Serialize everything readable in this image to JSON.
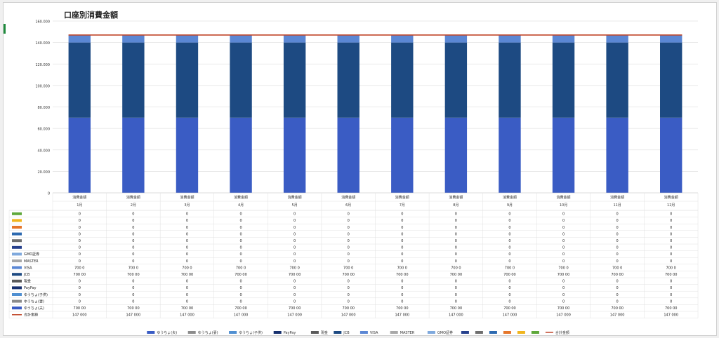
{
  "colors": {
    "bar_bottom": "#3a5cc4",
    "bar_mid": "#1d4a82",
    "bar_top": "#5b87d4",
    "total_line": "#c0462a"
  },
  "chart_data": {
    "type": "bar",
    "stacked": true,
    "title": "口座別消費金額",
    "categories": [
      "1月",
      "2月",
      "3月",
      "4月",
      "5月",
      "6月",
      "7月",
      "8月",
      "9月",
      "10月",
      "11月",
      "12月"
    ],
    "category_group": "消費金額",
    "ylim": [
      0,
      160000
    ],
    "y_ticks": [
      "0",
      "20.000",
      "40.000",
      "60.000",
      "80.000",
      "100.000",
      "120.000",
      "140.000",
      "160.000"
    ],
    "grid": true,
    "legend_position": "bottom",
    "series": [
      {
        "name": "ゆうちょ(夫)",
        "color": "#3a5cc4",
        "values": [
          70000,
          70000,
          70000,
          70000,
          70000,
          70000,
          70000,
          70000,
          70000,
          70000,
          70000,
          70000
        ],
        "labels": [
          "700 00",
          "700 00",
          "700 00",
          "700 00",
          "700 00",
          "700 00",
          "700 00",
          "700 00",
          "700 00",
          "700 00",
          "700 00",
          "700 00"
        ]
      },
      {
        "name": "ゆうちょ(妻)",
        "color": "#8c8c8c",
        "values": [
          0,
          0,
          0,
          0,
          0,
          0,
          0,
          0,
          0,
          0,
          0,
          0
        ]
      },
      {
        "name": "ゆうちょ(子供)",
        "color": "#4f8fd1",
        "values": [
          0,
          0,
          0,
          0,
          0,
          0,
          0,
          0,
          0,
          0,
          0,
          0
        ]
      },
      {
        "name": "PayPay",
        "color": "#17306e",
        "values": [
          0,
          0,
          0,
          0,
          0,
          0,
          0,
          0,
          0,
          0,
          0,
          0
        ]
      },
      {
        "name": "現金",
        "color": "#5a5a5a",
        "values": [
          0,
          0,
          0,
          0,
          0,
          0,
          0,
          0,
          0,
          0,
          0,
          0
        ]
      },
      {
        "name": "JCB",
        "color": "#1d4a82",
        "values": [
          70000,
          70000,
          70000,
          70000,
          70000,
          70000,
          70000,
          70000,
          70000,
          70000,
          70000,
          70000
        ],
        "labels": [
          "700 00",
          "700 00",
          "700 00",
          "700 00",
          "700 00",
          "700 00",
          "700 00",
          "700 00",
          "700 00",
          "700 00",
          "700 00",
          "700 00"
        ]
      },
      {
        "name": "VISA",
        "color": "#5b87d4",
        "values": [
          7000,
          7000,
          7000,
          7000,
          7000,
          7000,
          7000,
          7000,
          7000,
          7000,
          7000,
          7000
        ],
        "labels": [
          "700 0",
          "700 0",
          "700 0",
          "700 0",
          "700 0",
          "700 0",
          "700 0",
          "700 0",
          "700 0",
          "700 0",
          "700 0",
          "700 0"
        ]
      },
      {
        "name": "MASTER",
        "color": "#a8a8a8",
        "values": [
          0,
          0,
          0,
          0,
          0,
          0,
          0,
          0,
          0,
          0,
          0,
          0
        ]
      },
      {
        "name": "GMO証券",
        "color": "#7fa9dd",
        "values": [
          0,
          0,
          0,
          0,
          0,
          0,
          0,
          0,
          0,
          0,
          0,
          0
        ]
      },
      {
        "name": "",
        "color": "#26408c",
        "values": [
          0,
          0,
          0,
          0,
          0,
          0,
          0,
          0,
          0,
          0,
          0,
          0
        ]
      },
      {
        "name": "",
        "color": "#6e6e6e",
        "values": [
          0,
          0,
          0,
          0,
          0,
          0,
          0,
          0,
          0,
          0,
          0,
          0
        ]
      },
      {
        "name": "",
        "color": "#2c69b0",
        "values": [
          0,
          0,
          0,
          0,
          0,
          0,
          0,
          0,
          0,
          0,
          0,
          0
        ]
      },
      {
        "name": "",
        "color": "#e5762a",
        "values": [
          0,
          0,
          0,
          0,
          0,
          0,
          0,
          0,
          0,
          0,
          0,
          0
        ]
      },
      {
        "name": "",
        "color": "#f0b51e",
        "values": [
          0,
          0,
          0,
          0,
          0,
          0,
          0,
          0,
          0,
          0,
          0,
          0
        ]
      },
      {
        "name": "",
        "color": "#5fa83a",
        "values": [
          0,
          0,
          0,
          0,
          0,
          0,
          0,
          0,
          0,
          0,
          0,
          0
        ]
      }
    ],
    "line": {
      "name": "合計金額",
      "color": "#c0462a",
      "values": [
        147000,
        147000,
        147000,
        147000,
        147000,
        147000,
        147000,
        147000,
        147000,
        147000,
        147000,
        147000
      ],
      "labels": [
        "147 000",
        "147 000",
        "147 000",
        "147 000",
        "147 000",
        "147 000",
        "147 000",
        "147 000",
        "147 000",
        "147 000",
        "147 000",
        "147 000"
      ]
    }
  }
}
